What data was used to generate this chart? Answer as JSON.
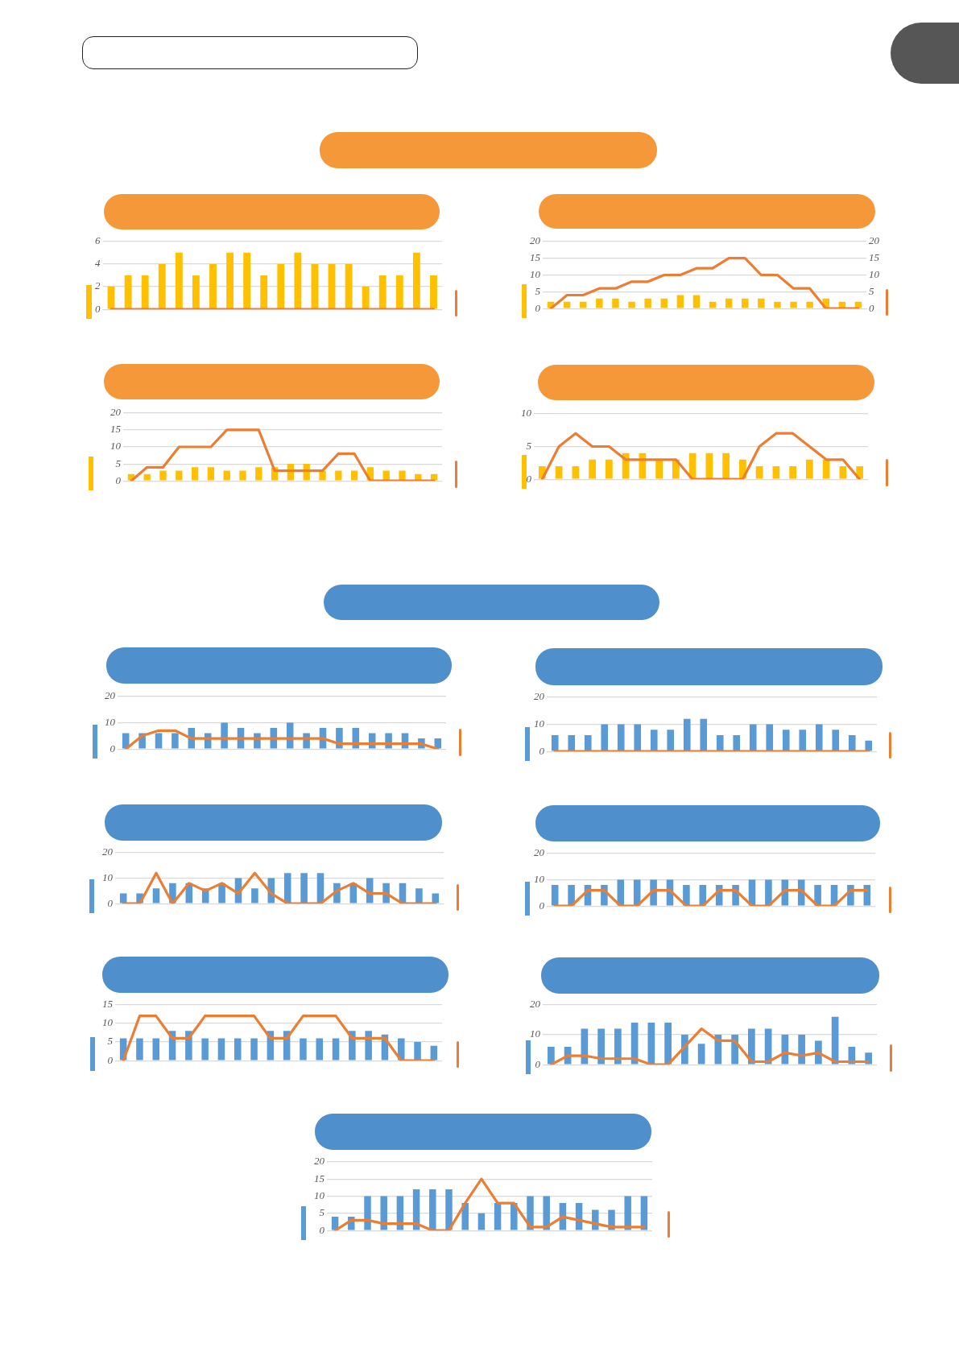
{
  "chart_data": [
    {
      "type": "bar",
      "categories": [
        null,
        null,
        null,
        null,
        null,
        null,
        null,
        null,
        null,
        null,
        null,
        null,
        null,
        null,
        null,
        null,
        null,
        null,
        null,
        null
      ],
      "series": [
        {
          "color": "#ffc000",
          "values": [
            2,
            3,
            3,
            4,
            5,
            3,
            4,
            5,
            5,
            3,
            4,
            5,
            4,
            4,
            4,
            2,
            3,
            3,
            5,
            3
          ]
        },
        {
          "type": "line",
          "color": "#ed7d31",
          "values": [
            0,
            0,
            0,
            0,
            0,
            0,
            0,
            0,
            0,
            0,
            0,
            0,
            0,
            0,
            0,
            0,
            0,
            0,
            0,
            0
          ]
        }
      ],
      "ylim": [
        0,
        6
      ],
      "yticks": [
        0,
        2,
        4,
        6
      ],
      "grid": "y",
      "marker": "none"
    },
    {
      "type": "bar",
      "categories": [
        null,
        null,
        null,
        null,
        null,
        null,
        null,
        null,
        null,
        null,
        null,
        null,
        null,
        null,
        null,
        null,
        null,
        null,
        null,
        null
      ],
      "series": [
        {
          "color": "#ffc000",
          "values": [
            2,
            2,
            2,
            3,
            3,
            2,
            3,
            3,
            4,
            4,
            2,
            3,
            3,
            3,
            2,
            2,
            2,
            3,
            2,
            2
          ]
        },
        {
          "type": "line",
          "color": "#ed7d31",
          "axis": "y2",
          "values": [
            0,
            4,
            4,
            6,
            6,
            8,
            8,
            10,
            10,
            12,
            12,
            15,
            15,
            10,
            10,
            6,
            6,
            0,
            0,
            0
          ]
        }
      ],
      "ylim": [
        0,
        20
      ],
      "yticks": [
        0,
        5,
        10,
        15,
        20
      ],
      "y2lim": [
        0,
        20
      ],
      "y2ticks": [
        0,
        5,
        10,
        15,
        20
      ],
      "grid": "y",
      "marker": "none"
    },
    {
      "type": "bar",
      "categories": [
        null,
        null,
        null,
        null,
        null,
        null,
        null,
        null,
        null,
        null,
        null,
        null,
        null,
        null,
        null,
        null,
        null,
        null,
        null,
        null
      ],
      "series": [
        {
          "color": "#ffc000",
          "values": [
            2,
            2,
            3,
            3,
            4,
            4,
            3,
            3,
            4,
            4,
            5,
            5,
            3,
            3,
            3,
            4,
            3,
            3,
            2,
            2
          ]
        },
        {
          "type": "line",
          "color": "#ed7d31",
          "values": [
            0,
            4,
            4,
            10,
            10,
            10,
            15,
            15,
            15,
            3,
            3,
            3,
            3,
            8,
            8,
            0,
            0,
            0,
            0,
            0
          ]
        }
      ],
      "ylim": [
        0,
        20
      ],
      "yticks": [
        0,
        5,
        10,
        15,
        20
      ],
      "grid": "y",
      "marker": "none"
    },
    {
      "type": "bar",
      "categories": [
        null,
        null,
        null,
        null,
        null,
        null,
        null,
        null,
        null,
        null,
        null,
        null,
        null,
        null,
        null,
        null,
        null,
        null,
        null,
        null
      ],
      "series": [
        {
          "color": "#ffc000",
          "values": [
            2,
            2,
            2,
            3,
            3,
            4,
            4,
            3,
            3,
            4,
            4,
            4,
            3,
            2,
            2,
            2,
            3,
            3,
            2,
            2
          ]
        },
        {
          "type": "line",
          "color": "#ed7d31",
          "values": [
            0,
            5,
            7,
            5,
            5,
            3,
            3,
            3,
            3,
            0,
            0,
            0,
            0,
            5,
            7,
            7,
            5,
            3,
            3,
            0
          ]
        }
      ],
      "ylim": [
        0,
        10
      ],
      "yticks": [
        0,
        5,
        10
      ],
      "grid": "y",
      "marker": "none"
    },
    {
      "type": "bar",
      "categories": [
        null,
        null,
        null,
        null,
        null,
        null,
        null,
        null,
        null,
        null,
        null,
        null,
        null,
        null,
        null,
        null,
        null,
        null,
        null,
        null
      ],
      "series": [
        {
          "color": "#5b9bd5",
          "values": [
            6,
            6,
            6,
            6,
            8,
            6,
            10,
            8,
            6,
            8,
            10,
            6,
            8,
            8,
            8,
            6,
            6,
            6,
            4,
            4
          ]
        },
        {
          "type": "line",
          "color": "#ed7d31",
          "values": [
            0,
            5,
            7,
            7,
            4,
            4,
            4,
            4,
            4,
            4,
            4,
            4,
            4,
            2,
            2,
            2,
            2,
            2,
            2,
            0
          ]
        }
      ],
      "ylim": [
        0,
        20
      ],
      "yticks": [
        0,
        10,
        20
      ],
      "grid": "y",
      "marker": "none"
    },
    {
      "type": "bar",
      "categories": [
        null,
        null,
        null,
        null,
        null,
        null,
        null,
        null,
        null,
        null,
        null,
        null,
        null,
        null,
        null,
        null,
        null,
        null,
        null,
        null
      ],
      "series": [
        {
          "color": "#5b9bd5",
          "values": [
            6,
            6,
            6,
            10,
            10,
            10,
            8,
            8,
            12,
            12,
            6,
            6,
            10,
            10,
            8,
            8,
            10,
            8,
            6,
            4
          ]
        },
        {
          "type": "line",
          "color": "#ed7d31",
          "values": [
            0,
            0,
            0,
            0,
            0,
            0,
            0,
            0,
            0,
            0,
            0,
            0,
            0,
            0,
            0,
            0,
            0,
            0,
            0,
            0
          ]
        }
      ],
      "ylim": [
        0,
        20
      ],
      "yticks": [
        0,
        10,
        20
      ],
      "grid": "y",
      "marker": "none"
    },
    {
      "type": "bar",
      "categories": [
        null,
        null,
        null,
        null,
        null,
        null,
        null,
        null,
        null,
        null,
        null,
        null,
        null,
        null,
        null,
        null,
        null,
        null,
        null,
        null
      ],
      "series": [
        {
          "color": "#5b9bd5",
          "values": [
            4,
            4,
            6,
            8,
            8,
            6,
            8,
            10,
            6,
            10,
            12,
            12,
            12,
            8,
            8,
            10,
            8,
            8,
            6,
            4
          ]
        },
        {
          "type": "line",
          "color": "#ed7d31",
          "values": [
            0,
            0,
            12,
            0,
            8,
            5,
            8,
            4,
            12,
            4,
            0,
            0,
            0,
            5,
            8,
            4,
            4,
            0,
            0,
            0
          ]
        }
      ],
      "ylim": [
        0,
        20
      ],
      "yticks": [
        0,
        10,
        20
      ],
      "grid": "y",
      "marker": "none"
    },
    {
      "type": "bar",
      "categories": [
        null,
        null,
        null,
        null,
        null,
        null,
        null,
        null,
        null,
        null,
        null,
        null,
        null,
        null,
        null,
        null,
        null,
        null,
        null,
        null
      ],
      "series": [
        {
          "color": "#5b9bd5",
          "values": [
            8,
            8,
            8,
            8,
            10,
            10,
            10,
            10,
            8,
            8,
            8,
            8,
            10,
            10,
            10,
            10,
            8,
            8,
            8,
            8
          ]
        },
        {
          "type": "line",
          "color": "#ed7d31",
          "values": [
            0,
            0,
            6,
            6,
            0,
            0,
            6,
            6,
            0,
            0,
            6,
            6,
            0,
            0,
            6,
            6,
            0,
            0,
            6,
            6
          ]
        }
      ],
      "ylim": [
        0,
        20
      ],
      "yticks": [
        0,
        10,
        20
      ],
      "grid": "y",
      "marker": "none"
    },
    {
      "type": "bar",
      "categories": [
        null,
        null,
        null,
        null,
        null,
        null,
        null,
        null,
        null,
        null,
        null,
        null,
        null,
        null,
        null,
        null,
        null,
        null,
        null,
        null
      ],
      "series": [
        {
          "color": "#5b9bd5",
          "values": [
            6,
            6,
            6,
            8,
            8,
            6,
            6,
            6,
            6,
            8,
            8,
            6,
            6,
            6,
            8,
            8,
            7,
            6,
            5,
            4
          ]
        },
        {
          "type": "line",
          "color": "#ed7d31",
          "values": [
            0,
            12,
            12,
            6,
            6,
            12,
            12,
            12,
            12,
            6,
            6,
            12,
            12,
            12,
            6,
            6,
            6,
            0,
            0,
            0
          ]
        }
      ],
      "ylim": [
        0,
        15
      ],
      "yticks": [
        0,
        5,
        10,
        15
      ],
      "grid": "y",
      "marker": "none"
    },
    {
      "type": "bar",
      "categories": [
        null,
        null,
        null,
        null,
        null,
        null,
        null,
        null,
        null,
        null,
        null,
        null,
        null,
        null,
        null,
        null,
        null,
        null,
        null,
        null
      ],
      "series": [
        {
          "color": "#5b9bd5",
          "values": [
            6,
            6,
            12,
            12,
            12,
            14,
            14,
            14,
            10,
            7,
            10,
            10,
            12,
            12,
            10,
            10,
            8,
            16,
            6,
            4
          ]
        },
        {
          "type": "line",
          "color": "#ed7d31",
          "values": [
            0,
            3,
            3,
            2,
            2,
            2,
            0,
            0,
            6,
            12,
            8,
            8,
            1,
            1,
            4,
            3,
            4,
            1,
            1,
            1
          ]
        }
      ],
      "ylim": [
        0,
        20
      ],
      "yticks": [
        0,
        10,
        20
      ],
      "grid": "y",
      "marker": "none"
    },
    {
      "type": "bar",
      "categories": [
        null,
        null,
        null,
        null,
        null,
        null,
        null,
        null,
        null,
        null,
        null,
        null,
        null,
        null,
        null,
        null,
        null,
        null,
        null,
        null
      ],
      "series": [
        {
          "color": "#5b9bd5",
          "values": [
            4,
            4,
            10,
            10,
            10,
            12,
            12,
            12,
            8,
            5,
            8,
            8,
            10,
            10,
            8,
            8,
            6,
            6,
            10,
            10
          ]
        },
        {
          "type": "line",
          "color": "#ed7d31",
          "values": [
            0,
            3,
            3,
            2,
            2,
            2,
            0,
            0,
            8,
            15,
            8,
            8,
            1,
            1,
            4,
            3,
            2,
            1,
            1,
            1
          ]
        }
      ],
      "ylim": [
        0,
        20
      ],
      "yticks": [
        0,
        5,
        10,
        15,
        20
      ],
      "grid": "y",
      "marker": "none"
    }
  ]
}
